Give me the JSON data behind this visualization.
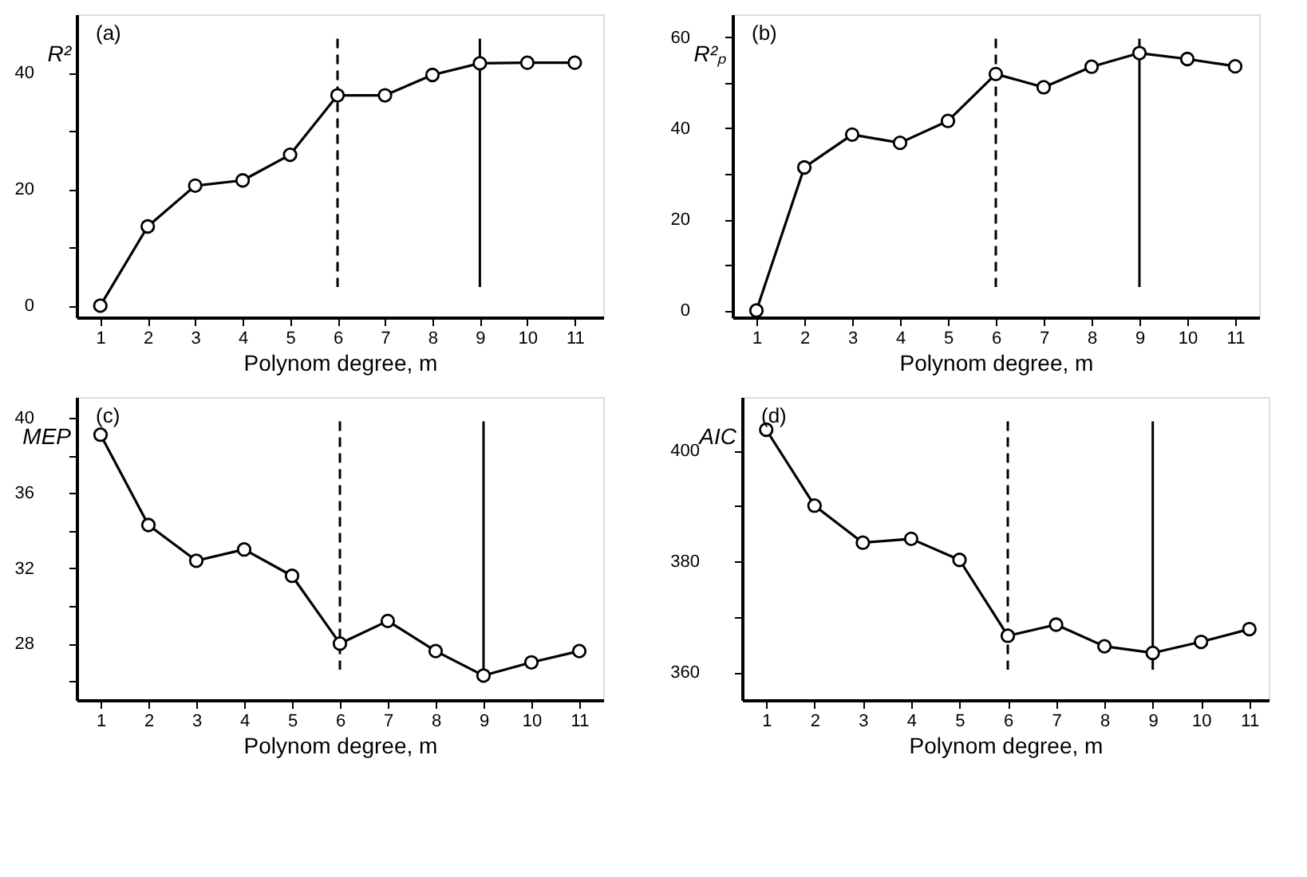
{
  "chart_data": [
    {
      "type": "line",
      "ylabel": "R²",
      "xlabel": "Polynom degree, m",
      "annotations": [
        "(a)"
      ],
      "marker": "circle",
      "line_style": "solid",
      "grid": false,
      "legend": false,
      "x": [
        1,
        2,
        3,
        4,
        5,
        6,
        7,
        8,
        9,
        10,
        11
      ],
      "series": [
        {
          "color": "#000000",
          "values": [
            0,
            13.6,
            20.6,
            21.5,
            25.9,
            36.1,
            36.1,
            39.6,
            41.6,
            41.7,
            41.7
          ]
        }
      ],
      "xlim": [
        0.5,
        11.6
      ],
      "xticks": [
        1,
        2,
        3,
        4,
        5,
        6,
        7,
        8,
        9,
        10,
        11
      ],
      "ylim": [
        -2,
        50
      ],
      "yticks": [
        0,
        {
          "value": 10,
          "label": null
        },
        20,
        {
          "value": 30,
          "label": null
        },
        40
      ],
      "ref_lines": [
        {
          "axis": "x",
          "value": 6,
          "label": null,
          "color": "#000000",
          "line_style": "dashed"
        },
        {
          "axis": "x",
          "value": 9,
          "label": null,
          "color": "#000000",
          "line_style": "solid"
        }
      ]
    },
    {
      "type": "line",
      "ylabel": "R²ₚ",
      "xlabel": "Polynom degree, m",
      "annotations": [
        "(b)"
      ],
      "marker": "circle",
      "line_style": "solid",
      "grid": false,
      "legend": false,
      "x": [
        1,
        2,
        3,
        4,
        5,
        6,
        7,
        8,
        9,
        10,
        11
      ],
      "series": [
        {
          "color": "#000000",
          "values": [
            0,
            31.4,
            38.6,
            36.8,
            41.6,
            51.9,
            49.0,
            53.5,
            56.5,
            55.2,
            53.6
          ]
        }
      ],
      "xlim": [
        0.5,
        11.5
      ],
      "xticks": [
        1,
        2,
        3,
        4,
        5,
        6,
        7,
        8,
        9,
        10,
        11
      ],
      "ylim": [
        -1.5,
        65
      ],
      "yticks": [
        0,
        {
          "value": 10,
          "label": null
        },
        20,
        {
          "value": 30,
          "label": null
        },
        40,
        {
          "value": 50,
          "label": null
        },
        60
      ],
      "ref_lines": [
        {
          "axis": "x",
          "value": 6,
          "label": null,
          "color": "#000000",
          "line_style": "dashed"
        },
        {
          "axis": "x",
          "value": 9,
          "label": null,
          "color": "#000000",
          "line_style": "solid"
        }
      ]
    },
    {
      "type": "line",
      "ylabel": "MEP",
      "xlabel": "Polynom degree, m",
      "annotations": [
        "(c)"
      ],
      "marker": "circle",
      "line_style": "solid",
      "grid": false,
      "legend": false,
      "x": [
        1,
        2,
        3,
        4,
        5,
        6,
        7,
        8,
        9,
        10,
        11
      ],
      "series": [
        {
          "color": "#000000",
          "values": [
            39.1,
            34.3,
            32.4,
            33.0,
            31.6,
            28.0,
            29.2,
            27.6,
            26.3,
            27.0,
            27.6
          ]
        }
      ],
      "xlim": [
        0.5,
        11.5
      ],
      "xticks": [
        1,
        2,
        3,
        4,
        5,
        6,
        7,
        8,
        9,
        10,
        11
      ],
      "ylim": [
        25,
        41.1
      ],
      "yticks": [
        {
          "value": 26,
          "label": null
        },
        28,
        {
          "value": 30,
          "label": null
        },
        32,
        {
          "value": 34,
          "label": null
        },
        36,
        {
          "value": 38,
          "label": null
        },
        40
      ],
      "ref_lines": [
        {
          "axis": "x",
          "value": 6,
          "label": null,
          "color": "#000000",
          "line_style": "dashed"
        },
        {
          "axis": "x",
          "value": 9,
          "label": null,
          "color": "#000000",
          "line_style": "solid"
        }
      ]
    },
    {
      "type": "line",
      "ylabel": "AIC",
      "xlabel": "Polynom degree, m",
      "annotations": [
        "(d)"
      ],
      "marker": "circle",
      "line_style": "solid",
      "grid": false,
      "legend": false,
      "x": [
        1,
        2,
        3,
        4,
        5,
        6,
        7,
        8,
        9,
        10,
        11
      ],
      "series": [
        {
          "color": "#000000",
          "values": [
            403.8,
            390.1,
            383.4,
            384.1,
            380.3,
            366.6,
            368.6,
            364.7,
            363.5,
            365.5,
            367.8
          ]
        }
      ],
      "xlim": [
        0.5,
        11.4
      ],
      "xticks": [
        1,
        2,
        3,
        4,
        5,
        6,
        7,
        8,
        9,
        10,
        11
      ],
      "ylim": [
        355,
        409.7
      ],
      "yticks": [
        360,
        {
          "value": 370,
          "label": null
        },
        380,
        {
          "value": 390,
          "label": null
        },
        400
      ],
      "ref_lines": [
        {
          "axis": "x",
          "value": 6,
          "label": null,
          "color": "#000000",
          "line_style": "dashed"
        },
        {
          "axis": "x",
          "value": 9,
          "label": null,
          "color": "#000000",
          "line_style": "solid"
        }
      ]
    }
  ]
}
